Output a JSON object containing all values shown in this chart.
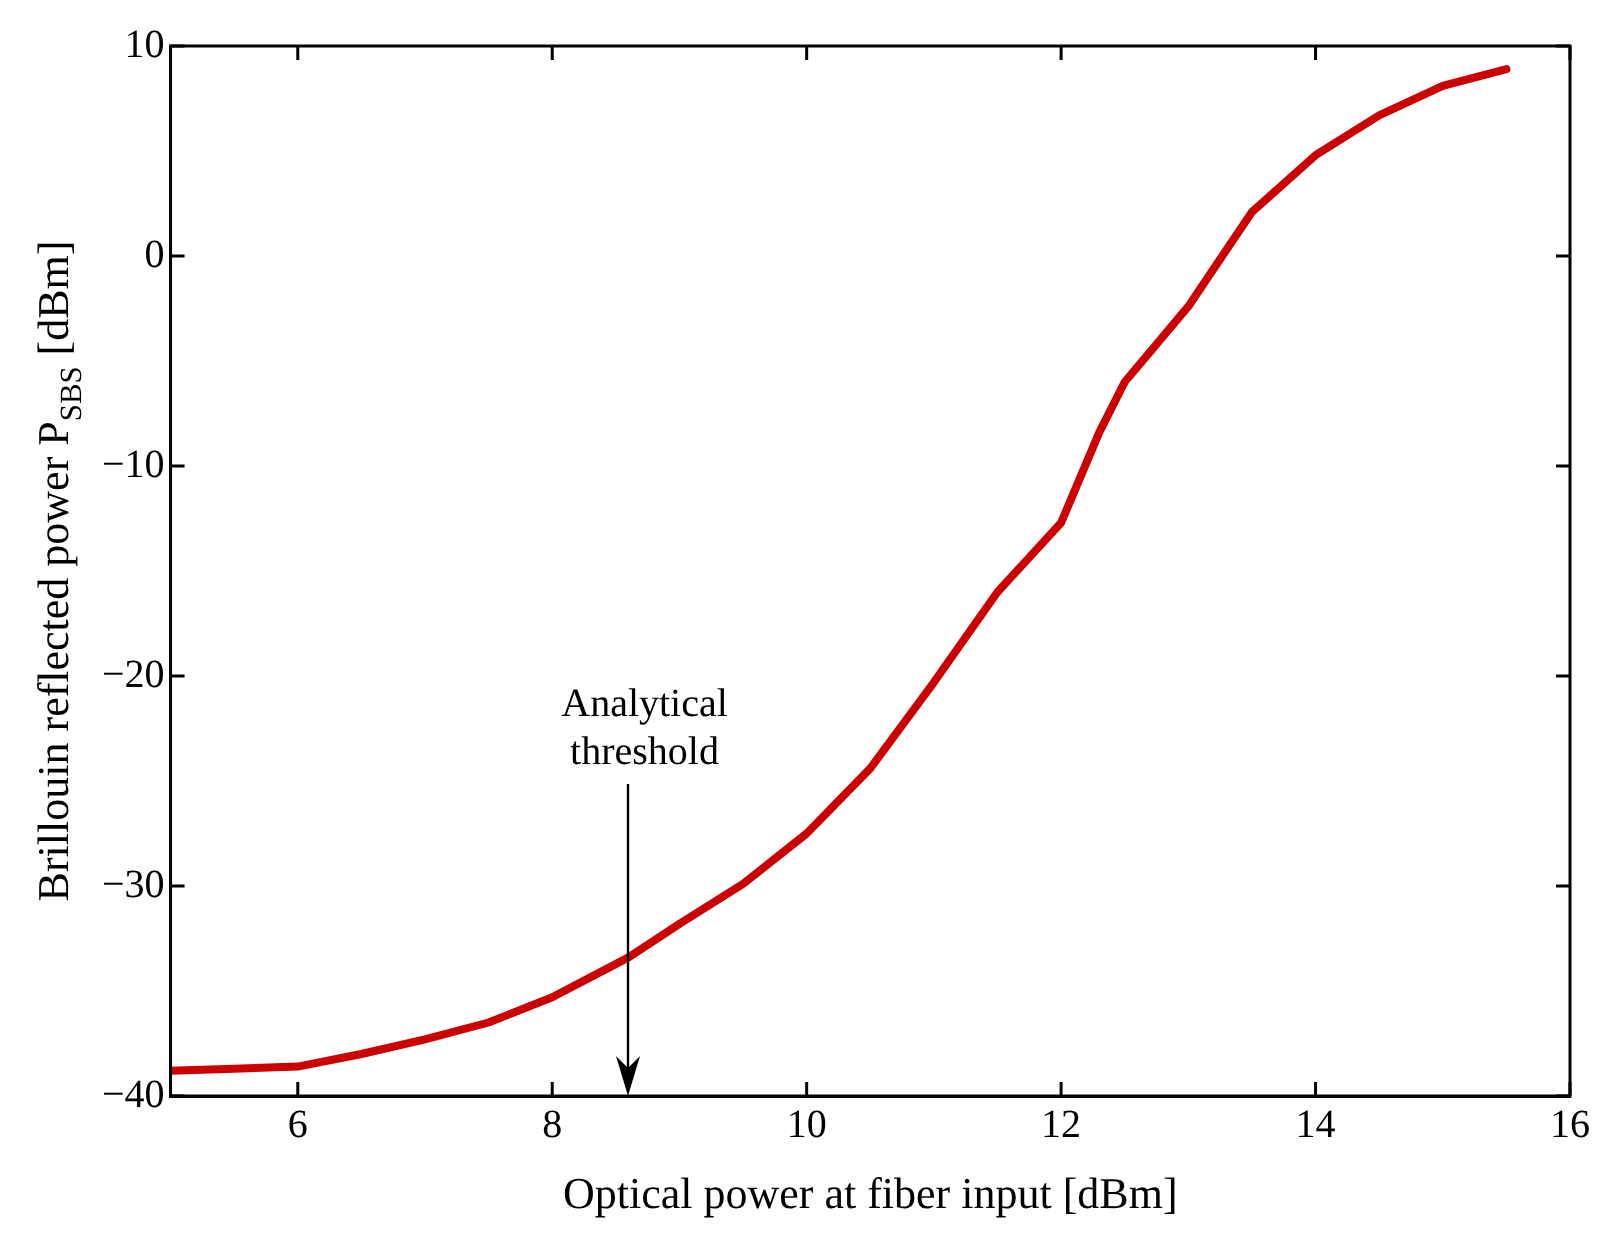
{
  "chart_data": {
    "type": "line",
    "xlabel": "Optical power at fiber input [dBm]",
    "ylabel": "Brillouin reflected power P$_{SBS}$ [dBm]",
    "x": [
      5,
      5.5,
      6,
      6.5,
      7,
      7.5,
      8,
      8.6,
      9,
      9.5,
      10,
      10.5,
      11,
      11.5,
      12,
      12.3,
      12.5,
      13,
      13.5,
      14,
      14.5,
      15,
      15.5
    ],
    "series": [
      {
        "color": "#cc0000",
        "values": [
          -38.8,
          -38.7,
          -38.6,
          -38.0,
          -37.3,
          -36.5,
          -35.3,
          -33.4,
          -31.8,
          -29.9,
          -27.5,
          -24.4,
          -20.3,
          -16.0,
          -12.7,
          -8.4,
          -6.0,
          -2.4,
          2.1,
          4.8,
          6.7,
          8.1,
          8.9
        ]
      }
    ],
    "xlim": [
      5,
      16
    ],
    "xticks": [
      6,
      8,
      10,
      12,
      14,
      16
    ],
    "ylim": [
      -40,
      10
    ],
    "yticks": [
      -40,
      -30,
      -20,
      -10,
      0,
      10
    ],
    "grid": false,
    "legend": false,
    "marker": "none",
    "line_style": "solid",
    "ref_lines": [
      {
        "axis": "x",
        "value": 8.6,
        "label": "Analytical threshold",
        "color": "#000000"
      }
    ]
  }
}
